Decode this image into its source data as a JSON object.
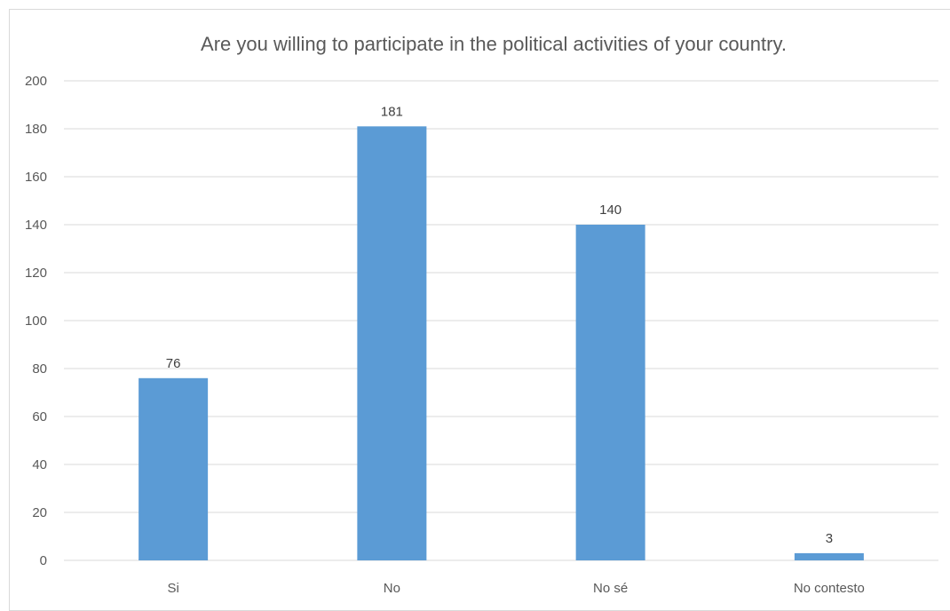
{
  "chart_data": {
    "type": "bar",
    "title": "Are you willing to participate in the political activities of your country.",
    "categories": [
      "Si",
      "No",
      "No sé",
      "No contesto"
    ],
    "values": [
      76,
      181,
      140,
      3
    ],
    "data_labels": [
      "76",
      "181",
      "140",
      "3"
    ],
    "xlabel": "",
    "ylabel": "",
    "ylim": [
      0,
      200
    ],
    "yticks": [
      "0",
      "20",
      "40",
      "60",
      "80",
      "100",
      "120",
      "140",
      "160",
      "180",
      "200"
    ],
    "grid": true,
    "legend": "none",
    "bar_color": "#5b9bd5"
  }
}
